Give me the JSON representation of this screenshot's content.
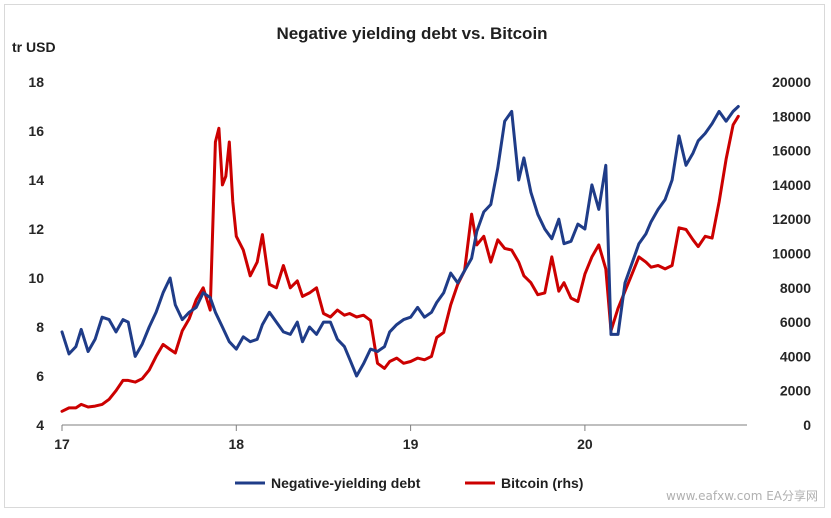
{
  "chart_data": {
    "type": "line",
    "title": "Negative yielding debt vs. Bitcoin",
    "y_left_label": "tr USD",
    "x_ticks": [
      "17",
      "18",
      "19",
      "20"
    ],
    "y_left_ticks": [
      "4",
      "6",
      "8",
      "10",
      "12",
      "14",
      "16",
      "18"
    ],
    "y_right_ticks": [
      "0",
      "2000",
      "4000",
      "6000",
      "8000",
      "10000",
      "12000",
      "14000",
      "16000",
      "18000",
      "20000"
    ],
    "xlim": [
      2017.0,
      2020.93
    ],
    "ylim_left": [
      4,
      18
    ],
    "ylim_right": [
      0,
      20000
    ],
    "legend_position": "bottom",
    "colors": {
      "negative_yielding_debt": "#1f3c88",
      "bitcoin": "#cc0000"
    },
    "series": [
      {
        "name": "Negative-yielding debt",
        "axis": "left",
        "x": [
          2017.0,
          2017.04,
          2017.08,
          2017.11,
          2017.15,
          2017.19,
          2017.23,
          2017.27,
          2017.31,
          2017.35,
          2017.38,
          2017.42,
          2017.46,
          2017.5,
          2017.54,
          2017.58,
          2017.62,
          2017.65,
          2017.69,
          2017.73,
          2017.77,
          2017.81,
          2017.85,
          2017.88,
          2017.92,
          2017.96,
          2018.0,
          2018.04,
          2018.08,
          2018.12,
          2018.15,
          2018.19,
          2018.23,
          2018.27,
          2018.31,
          2018.35,
          2018.38,
          2018.42,
          2018.46,
          2018.5,
          2018.54,
          2018.58,
          2018.62,
          2018.65,
          2018.69,
          2018.73,
          2018.77,
          2018.81,
          2018.85,
          2018.88,
          2018.92,
          2018.96,
          2019.0,
          2019.04,
          2019.08,
          2019.12,
          2019.15,
          2019.19,
          2019.23,
          2019.27,
          2019.31,
          2019.35,
          2019.38,
          2019.42,
          2019.46,
          2019.5,
          2019.54,
          2019.58,
          2019.62,
          2019.65,
          2019.69,
          2019.73,
          2019.77,
          2019.81,
          2019.85,
          2019.88,
          2019.92,
          2019.96,
          2020.0,
          2020.04,
          2020.08,
          2020.12,
          2020.15,
          2020.19,
          2020.23,
          2020.27,
          2020.31,
          2020.35,
          2020.38,
          2020.42,
          2020.46,
          2020.5,
          2020.54,
          2020.58,
          2020.62,
          2020.65,
          2020.69,
          2020.73,
          2020.77,
          2020.81,
          2020.85,
          2020.88
        ],
        "values": [
          7.8,
          6.9,
          7.2,
          7.9,
          7.0,
          7.5,
          8.4,
          8.3,
          7.8,
          8.3,
          8.2,
          6.8,
          7.3,
          8.0,
          8.6,
          9.4,
          10.0,
          8.9,
          8.3,
          8.6,
          8.8,
          9.4,
          9.2,
          8.6,
          8.0,
          7.4,
          7.1,
          7.6,
          7.4,
          7.5,
          8.1,
          8.6,
          8.2,
          7.8,
          7.7,
          8.2,
          7.4,
          8.0,
          7.7,
          8.2,
          8.2,
          7.5,
          7.2,
          6.7,
          6.0,
          6.5,
          7.1,
          7.0,
          7.2,
          7.8,
          8.1,
          8.3,
          8.4,
          8.8,
          8.4,
          8.6,
          9.0,
          9.4,
          10.2,
          9.8,
          10.3,
          10.8,
          11.9,
          12.7,
          13.0,
          14.5,
          16.4,
          16.8,
          14.0,
          14.9,
          13.5,
          12.6,
          12.0,
          11.6,
          12.4,
          11.4,
          11.5,
          12.2,
          12.0,
          13.8,
          12.8,
          14.6,
          7.7,
          7.7,
          9.8,
          10.6,
          11.4,
          11.8,
          12.3,
          12.8,
          13.2,
          14.0,
          15.8,
          14.6,
          15.1,
          15.6,
          15.9,
          16.3,
          16.8,
          16.4,
          16.8,
          17.0
        ],
        "values_rhs": []
      },
      {
        "name": "Bitcoin (rhs)",
        "axis": "right",
        "x": [
          2017.0,
          2017.04,
          2017.08,
          2017.11,
          2017.15,
          2017.19,
          2017.23,
          2017.27,
          2017.31,
          2017.35,
          2017.38,
          2017.42,
          2017.46,
          2017.5,
          2017.54,
          2017.58,
          2017.62,
          2017.65,
          2017.69,
          2017.73,
          2017.77,
          2017.81,
          2017.85,
          2017.88,
          2017.9,
          2017.92,
          2017.94,
          2017.96,
          2017.98,
          2018.0,
          2018.04,
          2018.08,
          2018.12,
          2018.15,
          2018.19,
          2018.23,
          2018.27,
          2018.31,
          2018.35,
          2018.38,
          2018.42,
          2018.46,
          2018.5,
          2018.54,
          2018.58,
          2018.62,
          2018.65,
          2018.69,
          2018.73,
          2018.77,
          2018.81,
          2018.85,
          2018.88,
          2018.92,
          2018.96,
          2019.0,
          2019.04,
          2019.08,
          2019.12,
          2019.15,
          2019.19,
          2019.23,
          2019.27,
          2019.31,
          2019.35,
          2019.38,
          2019.42,
          2019.46,
          2019.5,
          2019.54,
          2019.58,
          2019.62,
          2019.65,
          2019.69,
          2019.73,
          2019.77,
          2019.81,
          2019.85,
          2019.88,
          2019.92,
          2019.96,
          2020.0,
          2020.04,
          2020.08,
          2020.12,
          2020.15,
          2020.19,
          2020.23,
          2020.27,
          2020.31,
          2020.35,
          2020.38,
          2020.42,
          2020.46,
          2020.5,
          2020.54,
          2020.58,
          2020.62,
          2020.65,
          2020.69,
          2020.73,
          2020.77,
          2020.81,
          2020.85,
          2020.88
        ],
        "values": [
          800,
          1000,
          1000,
          1200,
          1050,
          1100,
          1200,
          1500,
          2000,
          2600,
          2600,
          2500,
          2700,
          3200,
          4000,
          4700,
          4400,
          4200,
          5500,
          6200,
          7300,
          8000,
          6700,
          16500,
          17300,
          14000,
          14500,
          16500,
          13000,
          11000,
          10200,
          8700,
          9500,
          11100,
          8200,
          8000,
          9300,
          8000,
          8400,
          7500,
          7700,
          8000,
          6500,
          6300,
          6700,
          6400,
          6500,
          6300,
          6400,
          6100,
          3600,
          3300,
          3700,
          3900,
          3600,
          3700,
          3900,
          3800,
          4000,
          5100,
          5400,
          7000,
          8200,
          9000,
          12300,
          10500,
          11000,
          9500,
          10800,
          10300,
          10200,
          9500,
          8700,
          8300,
          7600,
          7700,
          9800,
          7800,
          8300,
          7400,
          7200,
          8800,
          9800,
          10500,
          9100,
          5500,
          6800,
          7800,
          8800,
          9800,
          9500,
          9200,
          9300,
          9100,
          9300,
          11500,
          11400,
          10800,
          10400,
          11000,
          10900,
          13000,
          15500,
          17500,
          18000
        ]
      }
    ]
  },
  "legend": [
    {
      "label": "Negative-yielding debt",
      "color": "#1f3c88"
    },
    {
      "label": "Bitcoin (rhs)",
      "color": "#cc0000"
    }
  ],
  "watermark": "www.eafxw.com  EA分享网"
}
